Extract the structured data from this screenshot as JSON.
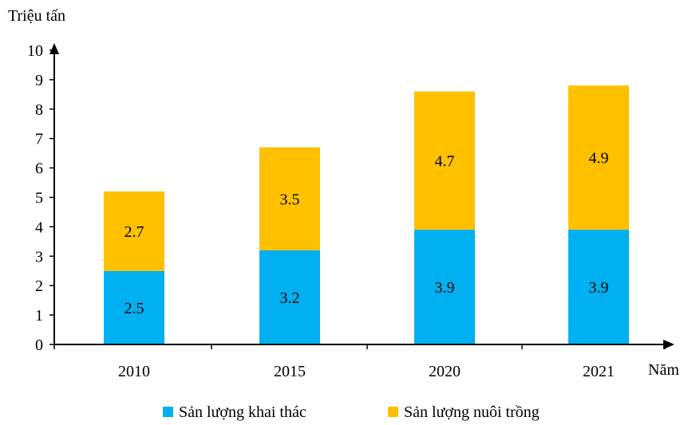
{
  "chart_data": {
    "type": "bar",
    "stacked": true,
    "ylabel": "Triệu tấn",
    "xlabel": "Năm",
    "ylim": [
      0,
      10
    ],
    "yticks": [
      0,
      1,
      2,
      3,
      4,
      5,
      6,
      7,
      8,
      9,
      10
    ],
    "categories": [
      "2010",
      "2015",
      "2020",
      "2021"
    ],
    "series": [
      {
        "name": "Sản lượng khai thác",
        "values": [
          2.5,
          3.2,
          3.9,
          3.9
        ],
        "color": "#00B0F0"
      },
      {
        "name": "Sản lượng nuôi trồng",
        "values": [
          2.7,
          3.5,
          4.7,
          4.9
        ],
        "color": "#FFC000"
      }
    ],
    "grid": false,
    "legend_position": "bottom"
  }
}
